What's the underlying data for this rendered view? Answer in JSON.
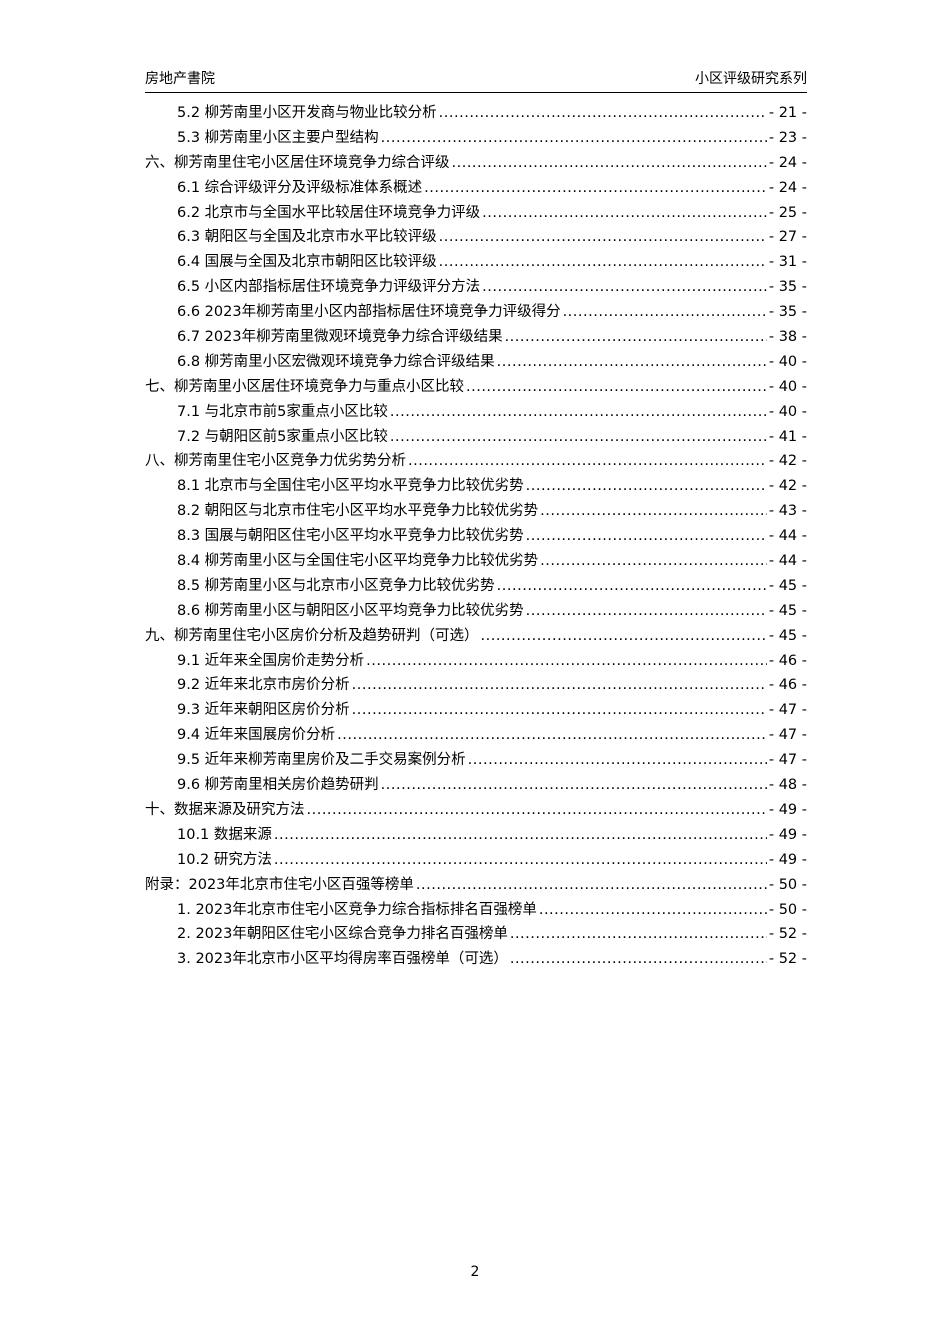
{
  "header": {
    "left": "房地产書院",
    "right": "小区评级研究系列"
  },
  "toc": [
    {
      "level": 2,
      "title": "5.2 柳芳南里小区开发商与物业比较分析",
      "page": "- 21 -"
    },
    {
      "level": 2,
      "title": "5.3 柳芳南里小区主要户型结构",
      "page": "- 23 -"
    },
    {
      "level": 1,
      "title": "六、柳芳南里住宅小区居住环境竞争力综合评级",
      "page": "- 24 -"
    },
    {
      "level": 2,
      "title": "6.1 综合评级评分及评级标准体系概述",
      "page": "- 24 -"
    },
    {
      "level": 2,
      "title": "6.2 北京市与全国水平比较居住环境竞争力评级",
      "page": "- 25 -"
    },
    {
      "level": 2,
      "title": "6.3 朝阳区与全国及北京市水平比较评级",
      "page": "- 27 -"
    },
    {
      "level": 2,
      "title": "6.4 国展与全国及北京市朝阳区比较评级",
      "page": "- 31 -"
    },
    {
      "level": 2,
      "title": "6.5 小区内部指标居住环境竞争力评级评分方法",
      "page": "- 35 -"
    },
    {
      "level": 2,
      "title": "6.6 2023年柳芳南里小区内部指标居住环境竞争力评级得分",
      "page": "- 35 -"
    },
    {
      "level": 2,
      "title": "6.7 2023年柳芳南里微观环境竞争力综合评级结果",
      "page": "- 38 -"
    },
    {
      "level": 2,
      "title": "6.8 柳芳南里小区宏微观环境竞争力综合评级结果",
      "page": "- 40 -"
    },
    {
      "level": 1,
      "title": "七、柳芳南里小区居住环境竞争力与重点小区比较",
      "page": "- 40 -"
    },
    {
      "level": 2,
      "title": "7.1 与北京市前5家重点小区比较",
      "page": "- 40 -"
    },
    {
      "level": 2,
      "title": "7.2 与朝阳区前5家重点小区比较",
      "page": "- 41 -"
    },
    {
      "level": 1,
      "title": "八、柳芳南里住宅小区竞争力优劣势分析",
      "page": "- 42 -"
    },
    {
      "level": 2,
      "title": "8.1 北京市与全国住宅小区平均水平竞争力比较优劣势",
      "page": "- 42 -"
    },
    {
      "level": 2,
      "title": "8.2 朝阳区与北京市住宅小区平均水平竞争力比较优劣势",
      "page": "- 43 -"
    },
    {
      "level": 2,
      "title": "8.3 国展与朝阳区住宅小区平均水平竞争力比较优劣势",
      "page": "- 44 -"
    },
    {
      "level": 2,
      "title": "8.4 柳芳南里小区与全国住宅小区平均竞争力比较优劣势",
      "page": "- 44 -"
    },
    {
      "level": 2,
      "title": "8.5 柳芳南里小区与北京市小区竞争力比较优劣势",
      "page": "- 45 -"
    },
    {
      "level": 2,
      "title": "8.6 柳芳南里小区与朝阳区小区平均竞争力比较优劣势",
      "page": "- 45 -"
    },
    {
      "level": 1,
      "title": "九、柳芳南里住宅小区房价分析及趋势研判（可选）",
      "page": "- 45 -"
    },
    {
      "level": 2,
      "title": "9.1 近年来全国房价走势分析",
      "page": "- 46 -"
    },
    {
      "level": 2,
      "title": "9.2 近年来北京市房价分析",
      "page": "- 46 -"
    },
    {
      "level": 2,
      "title": "9.3 近年来朝阳区房价分析",
      "page": "- 47 -"
    },
    {
      "level": 2,
      "title": "9.4 近年来国展房价分析",
      "page": "- 47 -"
    },
    {
      "level": 2,
      "title": "9.5 近年来柳芳南里房价及二手交易案例分析",
      "page": "- 47 -"
    },
    {
      "level": 2,
      "title": "9.6 柳芳南里相关房价趋势研判",
      "page": "- 48 -"
    },
    {
      "level": 1,
      "title": "十、数据来源及研究方法",
      "page": "- 49 -"
    },
    {
      "level": 2,
      "title": "10.1 数据来源",
      "page": "- 49 -"
    },
    {
      "level": 2,
      "title": "10.2 研究方法",
      "page": "- 49 -"
    },
    {
      "level": 1,
      "title": "附录：2023年北京市住宅小区百强等榜单",
      "page": "- 50 -"
    },
    {
      "level": 2,
      "title": "1. 2023年北京市住宅小区竞争力综合指标排名百强榜单",
      "page": "- 50 -"
    },
    {
      "level": 2,
      "title": "2. 2023年朝阳区住宅小区综合竞争力排名百强榜单",
      "page": "- 52 -"
    },
    {
      "level": 2,
      "title": "3. 2023年北京市小区平均得房率百强榜单（可选）",
      "page": "- 52 -"
    }
  ],
  "footer": {
    "page_number": "2"
  }
}
